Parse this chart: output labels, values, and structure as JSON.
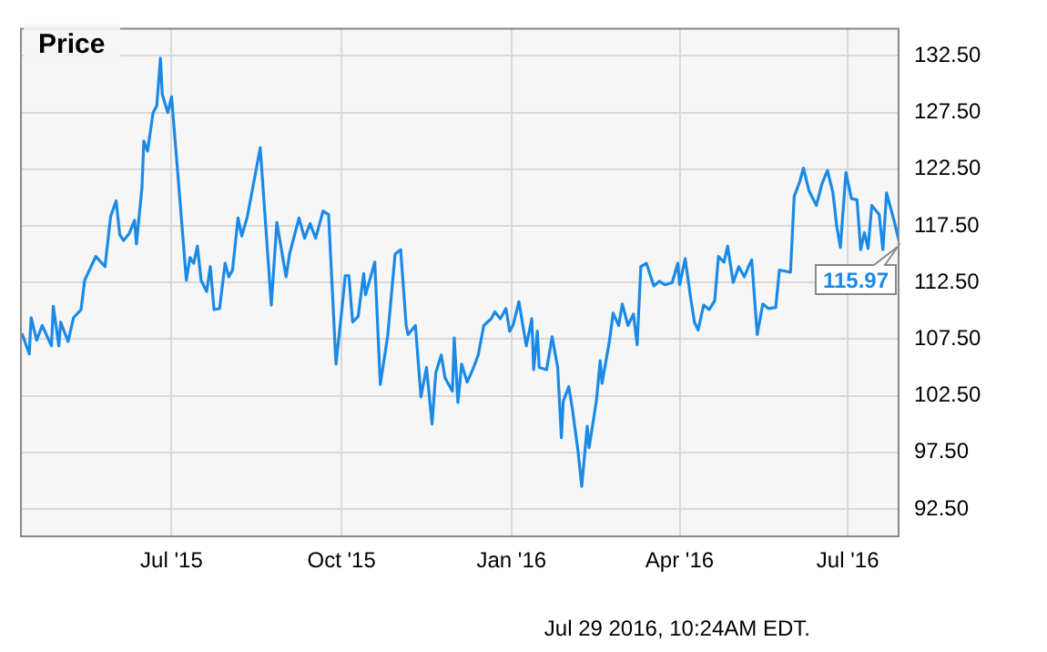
{
  "chart_data": {
    "type": "line",
    "title": "Price",
    "x": [
      "2015-04-11",
      "2015-04-15",
      "2015-04-16",
      "2015-04-19",
      "2015-04-22",
      "2015-04-27",
      "2015-04-28",
      "2015-05-01",
      "2015-05-02",
      "2015-05-06",
      "2015-05-09",
      "2015-05-13",
      "2015-05-15",
      "2015-05-21",
      "2015-05-26",
      "2015-05-29",
      "2015-06-01",
      "2015-06-03",
      "2015-06-05",
      "2015-06-08",
      "2015-06-11",
      "2015-06-12",
      "2015-06-15",
      "2015-06-16",
      "2015-06-18",
      "2015-06-21",
      "2015-06-23",
      "2015-06-25",
      "2015-06-26",
      "2015-06-29",
      "2015-07-01",
      "2015-07-05",
      "2015-07-09",
      "2015-07-11",
      "2015-07-13",
      "2015-07-15",
      "2015-07-17",
      "2015-07-20",
      "2015-07-22",
      "2015-07-24",
      "2015-07-27",
      "2015-07-30",
      "2015-08-01",
      "2015-08-03",
      "2015-08-06",
      "2015-08-08",
      "2015-08-11",
      "2015-08-14",
      "2015-08-18",
      "2015-08-24",
      "2015-08-27",
      "2015-09-01",
      "2015-09-03",
      "2015-09-08",
      "2015-09-11",
      "2015-09-14",
      "2015-09-17",
      "2015-09-21",
      "2015-09-24",
      "2015-09-28",
      "2015-10-01",
      "2015-10-03",
      "2015-10-05",
      "2015-10-07",
      "2015-10-10",
      "2015-10-13",
      "2015-10-14",
      "2015-10-19",
      "2015-10-22",
      "2015-10-26",
      "2015-10-28",
      "2015-10-30",
      "2015-11-02",
      "2015-11-05",
      "2015-11-06",
      "2015-11-10",
      "2015-11-13",
      "2015-11-16",
      "2015-11-19",
      "2015-11-21",
      "2015-11-24",
      "2015-11-26",
      "2015-11-30",
      "2015-12-01",
      "2015-12-03",
      "2015-12-05",
      "2015-12-08",
      "2015-12-11",
      "2015-12-14",
      "2015-12-17",
      "2015-12-21",
      "2015-12-23",
      "2015-12-26",
      "2015-12-29",
      "2015-12-31",
      "2016-01-02",
      "2016-01-05",
      "2016-01-09",
      "2016-01-12",
      "2016-01-13",
      "2016-01-15",
      "2016-01-16",
      "2016-01-20",
      "2016-01-23",
      "2016-01-26",
      "2016-01-28",
      "2016-01-29",
      "2016-02-01",
      "2016-02-03",
      "2016-02-06",
      "2016-02-08",
      "2016-02-11",
      "2016-02-12",
      "2016-02-16",
      "2016-02-18",
      "2016-02-19",
      "2016-02-23",
      "2016-02-25",
      "2016-02-28",
      "2016-03-01",
      "2016-03-04",
      "2016-03-07",
      "2016-03-09",
      "2016-03-11",
      "2016-03-14",
      "2016-03-18",
      "2016-03-21",
      "2016-03-24",
      "2016-03-28",
      "2016-03-31",
      "2016-04-01",
      "2016-04-04",
      "2016-04-07",
      "2016-04-09",
      "2016-04-11",
      "2016-04-14",
      "2016-04-17",
      "2016-04-20",
      "2016-04-22",
      "2016-04-25",
      "2016-04-27",
      "2016-04-30",
      "2016-05-03",
      "2016-05-06",
      "2016-05-08",
      "2016-05-10",
      "2016-05-13",
      "2016-05-16",
      "2016-05-19",
      "2016-05-23",
      "2016-05-25",
      "2016-05-31",
      "2016-06-02",
      "2016-06-05",
      "2016-06-07",
      "2016-06-10",
      "2016-06-14",
      "2016-06-17",
      "2016-06-20",
      "2016-06-23",
      "2016-06-25",
      "2016-06-27",
      "2016-06-30",
      "2016-07-03",
      "2016-07-06",
      "2016-07-08",
      "2016-07-10",
      "2016-07-12",
      "2016-07-14",
      "2016-07-18",
      "2016-07-20",
      "2016-07-22",
      "2016-07-26",
      "2016-07-29"
    ],
    "series": [
      {
        "color": "#1a8ae6",
        "values": [
          108.0,
          106.2,
          109.4,
          107.4,
          108.7,
          106.9,
          110.4,
          106.9,
          109.0,
          107.3,
          109.4,
          110.1,
          112.7,
          114.8,
          113.9,
          118.3,
          119.7,
          116.7,
          116.2,
          116.8,
          118.0,
          115.9,
          120.9,
          125.0,
          124.1,
          127.5,
          128.1,
          132.3,
          129.1,
          127.5,
          128.9,
          120.9,
          112.7,
          114.7,
          114.2,
          115.7,
          112.7,
          111.7,
          113.9,
          110.1,
          110.2,
          114.2,
          113.0,
          113.6,
          118.2,
          116.6,
          118.3,
          120.9,
          124.4,
          110.5,
          117.8,
          113.0,
          115.1,
          118.2,
          116.4,
          117.7,
          116.4,
          118.8,
          118.5,
          105.3,
          109.8,
          113.1,
          113.1,
          109.0,
          109.5,
          113.3,
          111.4,
          114.3,
          103.5,
          107.8,
          111.4,
          115.0,
          115.4,
          108.7,
          107.9,
          108.7,
          102.4,
          105.0,
          100.0,
          104.5,
          106.1,
          104.1,
          102.9,
          107.6,
          101.9,
          105.3,
          103.7,
          104.8,
          106.1,
          108.7,
          109.3,
          109.9,
          109.3,
          110.2,
          108.2,
          108.8,
          110.8,
          106.9,
          109.3,
          104.8,
          108.2,
          105.0,
          104.8,
          107.7,
          105.0,
          98.8,
          102.0,
          103.3,
          101.3,
          97.6,
          94.5,
          99.8,
          97.9,
          102.1,
          105.6,
          103.6,
          107.3,
          109.8,
          108.7,
          110.6,
          108.7,
          109.7,
          107.0,
          113.9,
          114.2,
          112.2,
          112.6,
          112.3,
          112.5,
          114.2,
          112.3,
          114.6,
          111.1,
          109.0,
          108.3,
          110.5,
          110.1,
          110.9,
          114.8,
          114.3,
          115.7,
          112.5,
          113.9,
          113.0,
          113.8,
          114.5,
          107.9,
          110.6,
          110.2,
          110.3,
          113.6,
          113.4,
          120.1,
          121.4,
          122.6,
          120.6,
          119.3,
          121.2,
          122.4,
          120.4,
          117.5,
          115.6,
          122.2,
          119.9,
          119.8,
          115.4,
          116.9,
          115.5,
          119.3,
          118.5,
          115.4,
          120.4,
          118.0,
          115.97
        ]
      }
    ],
    "xlim": [
      "2015-04-10",
      "2016-07-29"
    ],
    "xticks": [
      {
        "value": "2015-07-01",
        "label": "Jul '15"
      },
      {
        "value": "2015-10-01",
        "label": "Oct '15"
      },
      {
        "value": "2016-01-01",
        "label": "Jan '16"
      },
      {
        "value": "2016-04-01",
        "label": "Apr '16"
      },
      {
        "value": "2016-07-01",
        "label": "Jul '16"
      }
    ],
    "ylim": [
      90,
      135
    ],
    "yticks": [
      {
        "value": 92.5,
        "label": "92.50"
      },
      {
        "value": 97.5,
        "label": "97.50"
      },
      {
        "value": 102.5,
        "label": "102.50"
      },
      {
        "value": 107.5,
        "label": "107.50"
      },
      {
        "value": 112.5,
        "label": "112.50"
      },
      {
        "value": 117.5,
        "label": "117.50"
      },
      {
        "value": 122.5,
        "label": "122.50"
      },
      {
        "value": 127.5,
        "label": "127.50"
      },
      {
        "value": 132.5,
        "label": "132.50"
      }
    ],
    "grid": true,
    "legend": false,
    "marker": "none",
    "line_style": "solid",
    "annotations": [
      {
        "text": "115.97",
        "x": "2016-07-29",
        "y": 115.97
      },
      "Jul 29 2016, 10:24AM EDT."
    ]
  }
}
